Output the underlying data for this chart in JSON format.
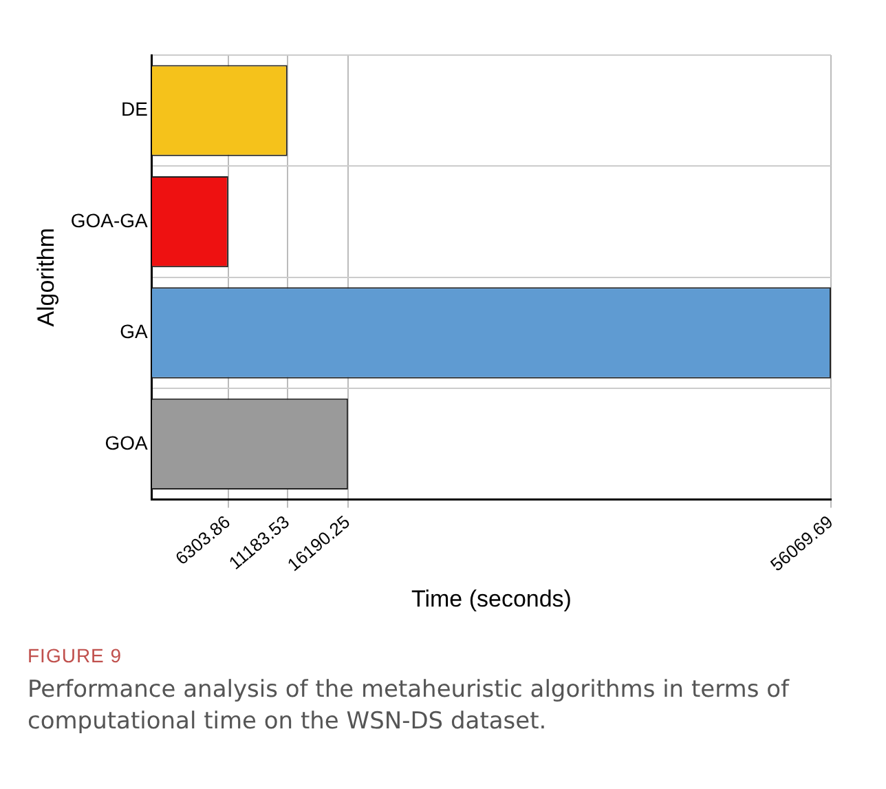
{
  "chart_data": {
    "type": "bar",
    "orientation": "horizontal",
    "xlabel": "Time (seconds)",
    "ylabel": "Algorithm",
    "categories": [
      "DE",
      "GOA-GA",
      "GA",
      "GOA"
    ],
    "values": [
      11183.53,
      6303.86,
      56069.69,
      16190.25
    ],
    "colors": [
      "#f5c21b",
      "#ee1111",
      "#5f9bd2",
      "#9a9a9a"
    ],
    "xlim": [
      0,
      56069.69
    ],
    "xticks": [
      6303.86,
      11183.53,
      16190.25,
      56069.69
    ],
    "grid": true,
    "legend": false,
    "annotations": [
      "FIGURE 9",
      "Performance analysis of the metaheuristic algorithms in terms of computational time on the WSN-DS dataset."
    ]
  }
}
